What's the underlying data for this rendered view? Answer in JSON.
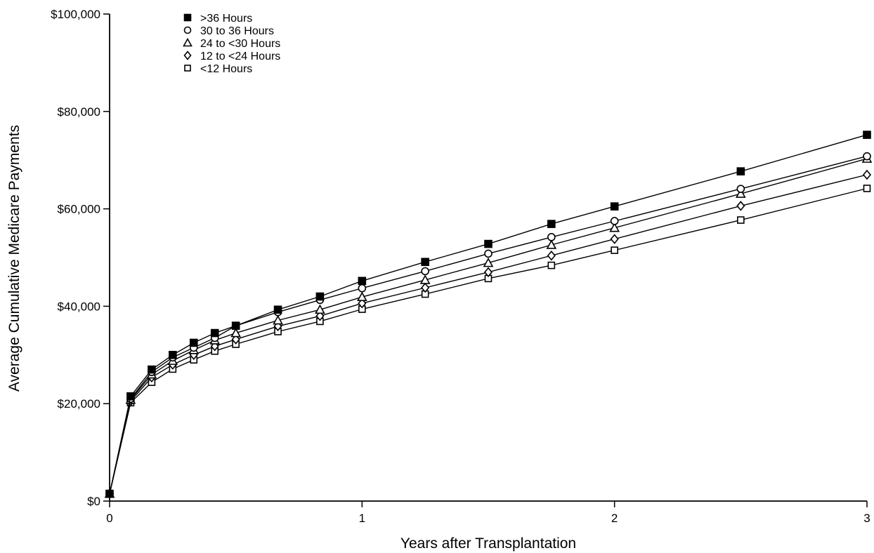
{
  "chart_data": {
    "type": "line",
    "title": "",
    "xlabel": "Years after Transplantation",
    "ylabel": "Average Cumulative Medicare Payments",
    "xlim": [
      0,
      3
    ],
    "ylim": [
      0,
      100000
    ],
    "x_ticks": [
      0,
      1,
      2,
      3
    ],
    "x_tick_labels": [
      "0",
      "1",
      "2",
      "3"
    ],
    "y_ticks": [
      0,
      20000,
      40000,
      60000,
      80000,
      100000
    ],
    "y_tick_labels": [
      "$0",
      "$20,000",
      "$40,000",
      "$60,000",
      "$80,000",
      "$100,000"
    ],
    "grid": false,
    "legend_position": "top-left",
    "x": [
      0,
      0.0833,
      0.1667,
      0.25,
      0.3333,
      0.4167,
      0.5,
      0.6667,
      0.8333,
      1,
      1.25,
      1.5,
      1.75,
      2,
      2.5,
      3
    ],
    "series": [
      {
        "name": ">36 Hours",
        "marker": "filled-square",
        "values": [
          1500,
          21500,
          27000,
          30000,
          32500,
          34500,
          36000,
          39300,
          42000,
          45200,
          49100,
          52800,
          56900,
          60500,
          67700,
          75200
        ]
      },
      {
        "name": "30 to 36 Hours",
        "marker": "open-circle",
        "values": [
          1500,
          21000,
          26500,
          29500,
          31500,
          33500,
          36000,
          38800,
          41300,
          43700,
          47200,
          50800,
          54200,
          57500,
          64100,
          70800
        ]
      },
      {
        "name": "24 to <30 Hours",
        "marker": "open-triangle",
        "values": [
          1500,
          20800,
          26000,
          28800,
          31000,
          33000,
          34500,
          37100,
          39300,
          41900,
          45400,
          48900,
          52600,
          56100,
          63100,
          70300
        ]
      },
      {
        "name": "12 to <24 Hours",
        "marker": "open-diamond",
        "values": [
          1500,
          20500,
          25400,
          28000,
          30000,
          31800,
          33200,
          35900,
          38000,
          40600,
          43800,
          47000,
          50400,
          53800,
          60600,
          67000
        ]
      },
      {
        "name": "<12 Hours",
        "marker": "open-square",
        "values": [
          1500,
          20200,
          24400,
          27100,
          29000,
          30800,
          32200,
          34800,
          36900,
          39400,
          42500,
          45700,
          48400,
          51500,
          57700,
          64200
        ]
      }
    ]
  }
}
